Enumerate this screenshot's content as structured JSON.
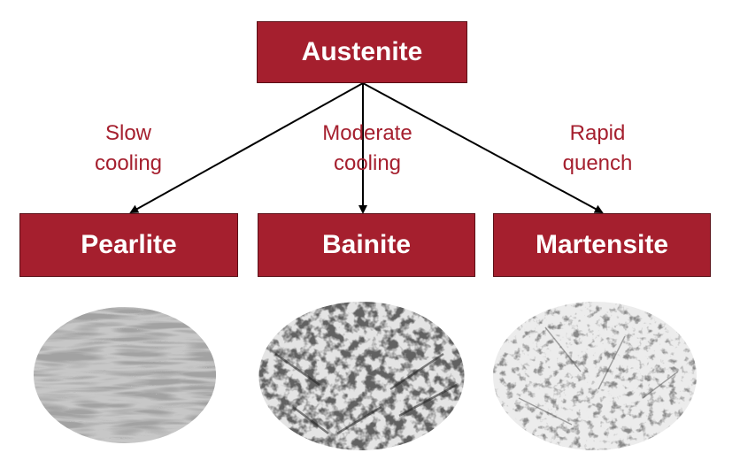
{
  "root": {
    "label": "Austenite"
  },
  "transitions": [
    {
      "condition_line1": "Slow",
      "condition_line2": "cooling",
      "product": "Pearlite"
    },
    {
      "condition_line1": "Moderate",
      "condition_line2": "cooling",
      "product": "Bainite"
    },
    {
      "condition_line1": "Rapid",
      "condition_line2": "quench",
      "product": "Martensite"
    }
  ],
  "colors": {
    "box_fill": "#a51f2e",
    "box_text": "#ffffff",
    "label_text": "#a51f2e",
    "arrow": "#000000"
  },
  "icons": [
    "pearlite-micrograph",
    "bainite-micrograph",
    "martensite-micrograph"
  ]
}
